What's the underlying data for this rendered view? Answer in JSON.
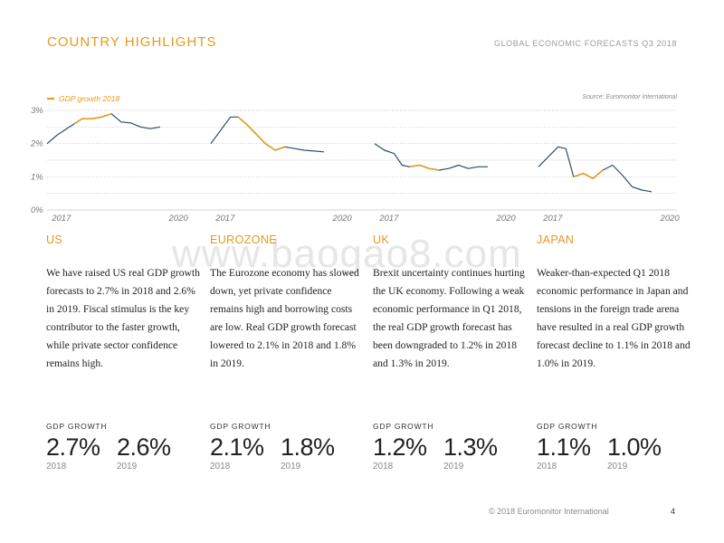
{
  "header": {
    "title": "COUNTRY HIGHLIGHTS",
    "subtitle": "GLOBAL ECONOMIC FORECASTS Q3 2018"
  },
  "legend": {
    "label": "GDP growth 2018"
  },
  "source": "Source: Euromonitor International",
  "watermark": "www.baogao8.com",
  "colors": {
    "accent": "#e39a1c",
    "series": "#2f4d6b",
    "grid": "#c8c8c8"
  },
  "countries": [
    {
      "name": "US",
      "text": "We have raised US real GDP growth forecasts to 2.7% in 2018 and 2.6% in 2019. Fiscal stimulus is the key contributor to the faster growth, while private sector confidence remains high.",
      "gdp_label": "GDP GROWTH",
      "val1": "2.7%",
      "year1": "2018",
      "val2": "2.6%",
      "year2": "2019"
    },
    {
      "name": "EUROZONE",
      "text": "The Eurozone economy has slowed down, yet private confidence remains high and borrowing costs are low. Real GDP growth forecast lowered to 2.1% in 2018 and 1.8% in 2019.",
      "gdp_label": "GDP GROWTH",
      "val1": "2.1%",
      "year1": "2018",
      "val2": "1.8%",
      "year2": "2019"
    },
    {
      "name": "UK",
      "text": "Brexit uncertainty continues hurting the UK economy. Following a weak economic performance in Q1 2018, the real GDP growth forecast has been downgraded to 1.2% in 2018 and 1.3% in 2019.",
      "gdp_label": "GDP GROWTH",
      "val1": "1.2%",
      "year1": "2018",
      "val2": "1.3%",
      "year2": "2019"
    },
    {
      "name": "JAPAN",
      "text": "Weaker-than-expected Q1 2018 economic performance in Japan and tensions in the foreign trade arena have resulted in a real GDP growth forecast decline to 1.1% in 2018 and 1.0% in 2019.",
      "gdp_label": "GDP GROWTH",
      "val1": "1.1%",
      "year1": "2018",
      "val2": "1.0%",
      "year2": "2019"
    }
  ],
  "footer": {
    "copyright": "© 2018 Euromonitor International",
    "page": "4"
  },
  "chart_data": {
    "type": "line",
    "ylim": [
      0,
      3
    ],
    "yticks": [
      "0%",
      "1%",
      "2%",
      "3%"
    ],
    "xticks": [
      "2017",
      "2020"
    ],
    "highlight_label": "GDP growth 2018",
    "panels": [
      {
        "name": "US",
        "x": [
          2016.6,
          2016.85,
          2017.1,
          2017.3,
          2017.5,
          2017.75,
          2018.0,
          2018.25,
          2018.5,
          2018.75,
          2019.0,
          2019.25,
          2019.5
        ],
        "y": [
          2.0,
          2.25,
          2.45,
          2.6,
          2.75,
          2.75,
          2.8,
          2.9,
          2.65,
          2.62,
          2.5,
          2.45,
          2.5
        ],
        "highlight_range": [
          2017.3,
          2018.25
        ]
      },
      {
        "name": "EUROZONE",
        "x": [
          2016.6,
          2016.85,
          2017.1,
          2017.3,
          2017.5,
          2017.75,
          2018.0,
          2018.25,
          2018.5,
          2018.75,
          2019.0,
          2019.5
        ],
        "y": [
          2.0,
          2.4,
          2.8,
          2.8,
          2.6,
          2.3,
          2.0,
          1.8,
          1.9,
          1.85,
          1.8,
          1.75
        ],
        "highlight_range": [
          2017.3,
          2018.5
        ]
      },
      {
        "name": "UK",
        "x": [
          2016.6,
          2016.85,
          2017.1,
          2017.3,
          2017.5,
          2017.75,
          2018.0,
          2018.25,
          2018.5,
          2018.75,
          2019.0,
          2019.25,
          2019.5
        ],
        "y": [
          2.0,
          1.8,
          1.7,
          1.35,
          1.3,
          1.35,
          1.25,
          1.2,
          1.25,
          1.35,
          1.25,
          1.3,
          1.3
        ],
        "highlight_range": [
          2017.5,
          2018.25
        ]
      },
      {
        "name": "JAPAN",
        "x": [
          2016.6,
          2016.85,
          2017.1,
          2017.3,
          2017.5,
          2017.75,
          2018.0,
          2018.25,
          2018.5,
          2018.75,
          2019.0,
          2019.25,
          2019.5
        ],
        "y": [
          1.3,
          1.6,
          1.9,
          1.85,
          1.0,
          1.1,
          0.95,
          1.2,
          1.35,
          1.05,
          0.7,
          0.6,
          0.55
        ],
        "highlight_range": [
          2017.5,
          2018.25
        ]
      }
    ]
  }
}
